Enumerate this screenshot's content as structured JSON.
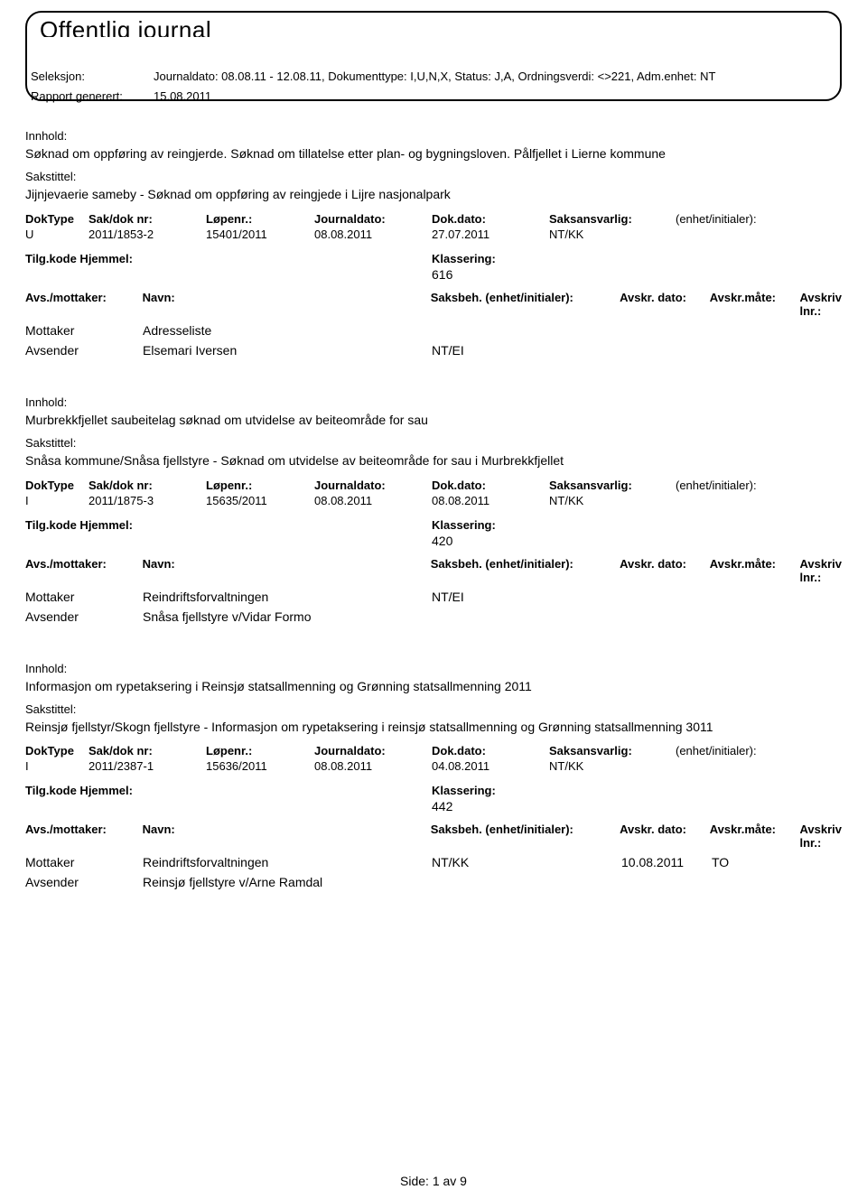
{
  "title": "Offentlig journal",
  "selection_label": "Seleksjon:",
  "selection_value": "Journaldato: 08.08.11 - 12.08.11, Dokumenttype: I,U,N,X, Status: J,A, Ordningsverdi: <>221, Adm.enhet: NT",
  "generated_label": "Rapport generert:",
  "generated_value": "15.08.2011",
  "labels": {
    "innhold": "Innhold:",
    "sakstittel": "Sakstittel:",
    "doktype": "DokType",
    "sakdok": "Sak/dok nr:",
    "lopenr": "Løpenr.:",
    "journaldato": "Journaldato:",
    "dokdato": "Dok.dato:",
    "saksansvarlig": "Saksansvarlig:",
    "enhet": "(enhet/initialer):",
    "tilgkode": "Tilg.kode",
    "hjemmel": "Hjemmel:",
    "klassering": "Klassering:",
    "avsmottaker": "Avs./mottaker:",
    "navn": "Navn:",
    "saksbeh": "Saksbeh.",
    "avskr_dato": "Avskr. dato:",
    "avskr_maate": "Avskr.måte:",
    "avskriv_lnr": "Avskriv lnr.:",
    "mottaker": "Mottaker",
    "avsender": "Avsender"
  },
  "entries": [
    {
      "innhold": "Søknad om oppføring av reingjerde. Søknad om tillatelse etter plan- og bygningsloven. Pålfjellet i Lierne kommune",
      "sakstittel": "Jijnjevaerie sameby - Søknad om oppføring av reingjede i Lijre nasjonalpark",
      "doktype": "U",
      "sakdok": "2011/1853-2",
      "lopenr": "15401/2011",
      "jdato": "08.08.2011",
      "ddato": "27.07.2011",
      "saksansvarlig": "NT/KK",
      "enhet": "",
      "klassering": "616",
      "parties": [
        {
          "role": "Mottaker",
          "name": "Adresseliste",
          "saksbeh": "",
          "dato": "",
          "maate": ""
        },
        {
          "role": "Avsender",
          "name": "Elsemari Iversen",
          "saksbeh": "NT/EI",
          "dato": "",
          "maate": ""
        }
      ]
    },
    {
      "innhold": "Murbrekkfjellet saubeitelag søknad om utvidelse av beiteområde for sau",
      "sakstittel": "Snåsa kommune/Snåsa fjellstyre - Søknad om utvidelse av beiteområde for sau i Murbrekkfjellet",
      "doktype": "I",
      "sakdok": "2011/1875-3",
      "lopenr": "15635/2011",
      "jdato": "08.08.2011",
      "ddato": "08.08.2011",
      "saksansvarlig": "NT/KK",
      "enhet": "",
      "klassering": "420",
      "parties": [
        {
          "role": "Mottaker",
          "name": "Reindriftsforvaltningen",
          "saksbeh": "NT/EI",
          "dato": "",
          "maate": ""
        },
        {
          "role": "Avsender",
          "name": "Snåsa fjellstyre v/Vidar Formo",
          "saksbeh": "",
          "dato": "",
          "maate": ""
        }
      ]
    },
    {
      "innhold": "Informasjon om rypetaksering i Reinsjø statsallmenning og Grønning statsallmenning 2011",
      "sakstittel": "Reinsjø fjellstyr/Skogn fjellstyre - Informasjon om rypetaksering i reinsjø statsallmenning og Grønning statsallmenning 3011",
      "doktype": "I",
      "sakdok": "2011/2387-1",
      "lopenr": "15636/2011",
      "jdato": "08.08.2011",
      "ddato": "04.08.2011",
      "saksansvarlig": "NT/KK",
      "enhet": "",
      "klassering": "442",
      "parties": [
        {
          "role": "Mottaker",
          "name": "Reindriftsforvaltningen",
          "saksbeh": "NT/KK",
          "dato": "10.08.2011",
          "maate": "TO"
        },
        {
          "role": "Avsender",
          "name": "Reinsjø fjellstyre v/Arne Ramdal",
          "saksbeh": "",
          "dato": "",
          "maate": ""
        }
      ]
    }
  ],
  "footer": "Side: 1 av 9"
}
